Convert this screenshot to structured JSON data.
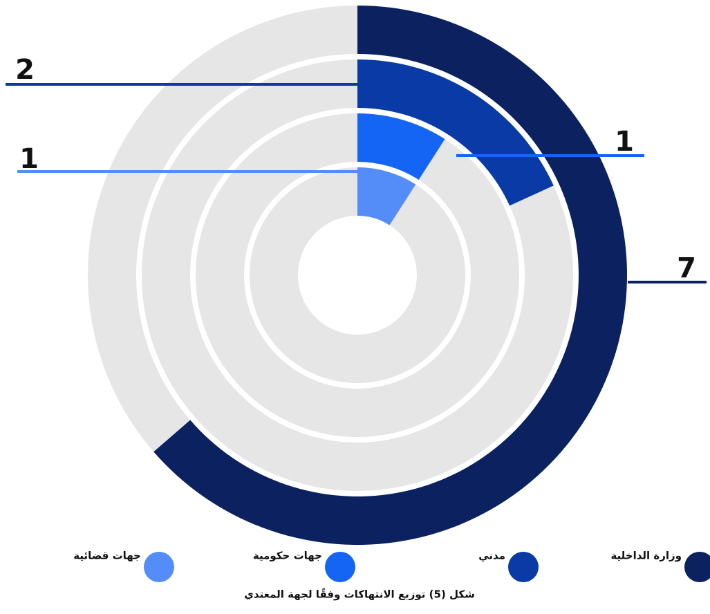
{
  "chart_data": {
    "type": "radial-bar",
    "caption": "شكل (5) توزيع الانتهاكات وفقًا لجهة المعتدي",
    "series": [
      {
        "name": "وزارة الداخلية",
        "color": "#0b2160",
        "values": [
          7
        ]
      },
      {
        "name": "مدني",
        "color": "#0a3aa6",
        "values": [
          2
        ]
      },
      {
        "name": "جهات حكومية",
        "color": "#1565f5",
        "values": [
          1
        ]
      },
      {
        "name": "جهات قضائية",
        "color": "#548df7",
        "values": [
          1
        ]
      }
    ],
    "track_color": "#e6e6e6"
  }
}
